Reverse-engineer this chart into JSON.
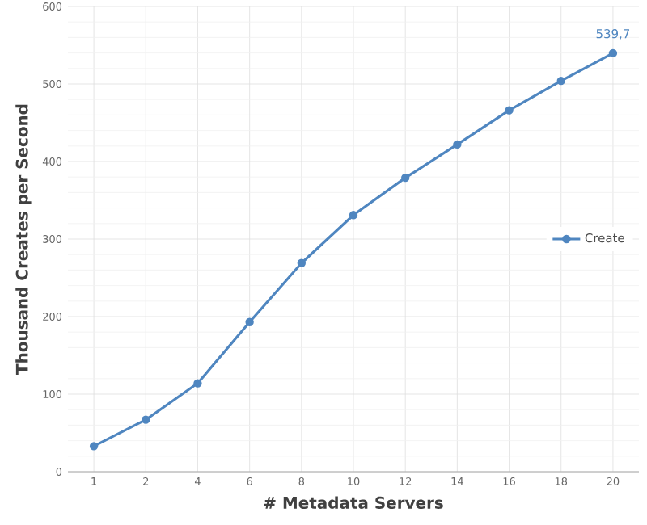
{
  "chart_data": {
    "type": "line",
    "xlabel": "# Metadata Servers",
    "ylabel": "Thousand Creates per Second",
    "categories": [
      "1",
      "2",
      "4",
      "6",
      "8",
      "10",
      "12",
      "14",
      "16",
      "18",
      "20"
    ],
    "series": [
      {
        "name": "Create",
        "color": "#4f86c0",
        "values": [
          33,
          67,
          114,
          193,
          269,
          331,
          379,
          422,
          466,
          504,
          539.7
        ],
        "value_labels": [
          null,
          null,
          null,
          null,
          null,
          null,
          null,
          null,
          null,
          null,
          "539,7"
        ]
      }
    ],
    "ylim": [
      0,
      600
    ],
    "yticks": [
      0,
      100,
      200,
      300,
      400,
      500,
      600
    ],
    "grid": true,
    "legend": "right",
    "marker": "circle",
    "line_style": "solid"
  }
}
